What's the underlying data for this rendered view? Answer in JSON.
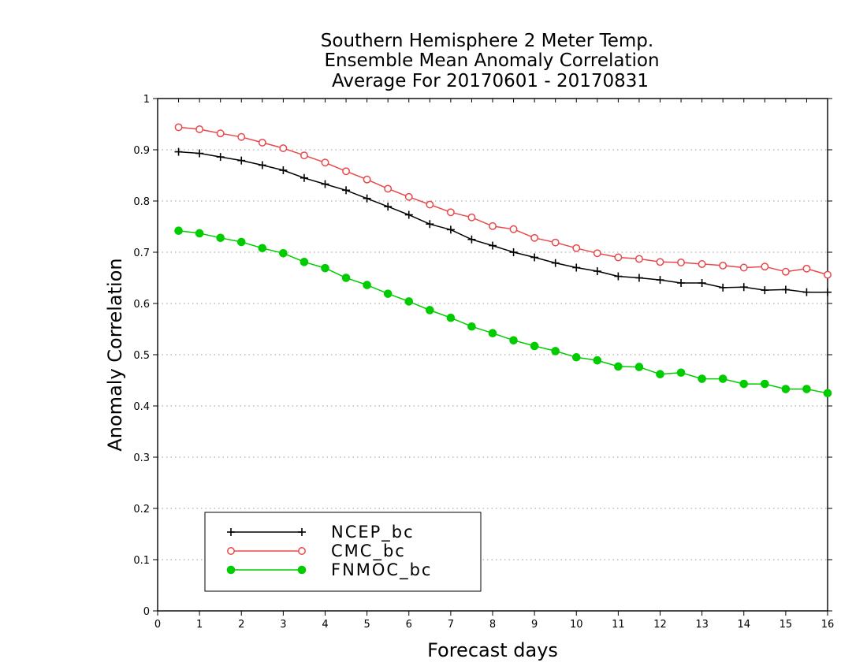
{
  "chart_data": {
    "type": "line",
    "title": [
      "Southern Hemisphere 2 Meter Temp.",
      "Ensemble Mean Anomaly Correlation",
      "Average For 20170601 - 20170831"
    ],
    "xlabel": "Forecast days",
    "ylabel": "Anomaly Correlation",
    "xlim": [
      0,
      16
    ],
    "ylim": [
      0,
      1
    ],
    "xticks": [
      "0",
      "1",
      "2",
      "3",
      "4",
      "5",
      "6",
      "7",
      "8",
      "9",
      "10",
      "11",
      "12",
      "13",
      "14",
      "15",
      "16"
    ],
    "yticks": [
      "0",
      "0.1",
      "0.2",
      "0.3",
      "0.4",
      "0.5",
      "0.6",
      "0.7",
      "0.8",
      "0.9",
      "1"
    ],
    "grid": "horizontal-dotted",
    "legend_position": "bottom-left",
    "x": [
      0.5,
      1,
      1.5,
      2,
      2.5,
      3,
      3.5,
      4,
      4.5,
      5,
      5.5,
      6,
      6.5,
      7,
      7.5,
      8,
      8.5,
      9,
      9.5,
      10,
      10.5,
      11,
      11.5,
      12,
      12.5,
      13,
      13.5,
      14,
      14.5,
      15,
      15.5,
      16
    ],
    "series": [
      {
        "name": "NCEP_bc",
        "color": "#000000",
        "marker": "plus",
        "values": [
          0.896,
          0.893,
          0.886,
          0.879,
          0.87,
          0.86,
          0.845,
          0.833,
          0.821,
          0.805,
          0.789,
          0.773,
          0.755,
          0.744,
          0.725,
          0.713,
          0.7,
          0.69,
          0.679,
          0.67,
          0.663,
          0.653,
          0.65,
          0.646,
          0.64,
          0.64,
          0.631,
          0.632,
          0.626,
          0.627,
          0.622,
          0.622
        ]
      },
      {
        "name": "CMC_bc",
        "color": "#e8484a",
        "marker": "open-circle",
        "values": [
          0.944,
          0.94,
          0.932,
          0.925,
          0.914,
          0.903,
          0.889,
          0.875,
          0.858,
          0.842,
          0.824,
          0.808,
          0.793,
          0.778,
          0.768,
          0.751,
          0.745,
          0.728,
          0.719,
          0.708,
          0.698,
          0.69,
          0.687,
          0.681,
          0.68,
          0.677,
          0.674,
          0.67,
          0.672,
          0.662,
          0.668,
          0.656
        ]
      },
      {
        "name": "FNMOC_bc",
        "color": "#00cc00",
        "marker": "filled-circle",
        "values": [
          0.742,
          0.737,
          0.728,
          0.72,
          0.708,
          0.698,
          0.681,
          0.669,
          0.65,
          0.636,
          0.619,
          0.604,
          0.587,
          0.572,
          0.555,
          0.542,
          0.528,
          0.517,
          0.507,
          0.495,
          0.489,
          0.477,
          0.476,
          0.462,
          0.465,
          0.453,
          0.453,
          0.443,
          0.443,
          0.433,
          0.433,
          0.425
        ]
      }
    ]
  }
}
